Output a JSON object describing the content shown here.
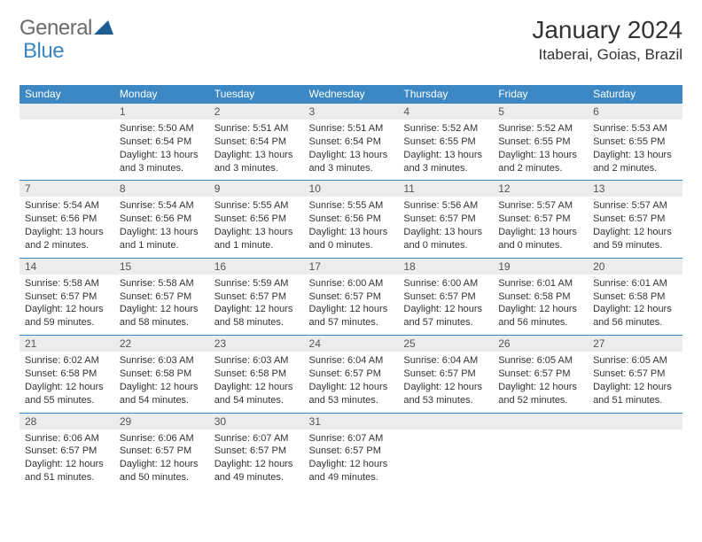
{
  "logo": {
    "part1": "General",
    "part2": "Blue"
  },
  "title": "January 2024",
  "location": "Itaberai, Goias, Brazil",
  "colors": {
    "header_bg": "#3b88c4",
    "header_text": "#ffffff",
    "daynum_bg": "#ececec",
    "rule": "#3b88c4",
    "logo_gray": "#6b6b6b",
    "logo_blue": "#3b88c4"
  },
  "weekdays": [
    "Sunday",
    "Monday",
    "Tuesday",
    "Wednesday",
    "Thursday",
    "Friday",
    "Saturday"
  ],
  "weeks": [
    [
      {
        "num": "",
        "sunrise": "",
        "sunset": "",
        "daylight": ""
      },
      {
        "num": "1",
        "sunrise": "5:50 AM",
        "sunset": "6:54 PM",
        "daylight": "13 hours and 3 minutes."
      },
      {
        "num": "2",
        "sunrise": "5:51 AM",
        "sunset": "6:54 PM",
        "daylight": "13 hours and 3 minutes."
      },
      {
        "num": "3",
        "sunrise": "5:51 AM",
        "sunset": "6:54 PM",
        "daylight": "13 hours and 3 minutes."
      },
      {
        "num": "4",
        "sunrise": "5:52 AM",
        "sunset": "6:55 PM",
        "daylight": "13 hours and 3 minutes."
      },
      {
        "num": "5",
        "sunrise": "5:52 AM",
        "sunset": "6:55 PM",
        "daylight": "13 hours and 2 minutes."
      },
      {
        "num": "6",
        "sunrise": "5:53 AM",
        "sunset": "6:55 PM",
        "daylight": "13 hours and 2 minutes."
      }
    ],
    [
      {
        "num": "7",
        "sunrise": "5:54 AM",
        "sunset": "6:56 PM",
        "daylight": "13 hours and 2 minutes."
      },
      {
        "num": "8",
        "sunrise": "5:54 AM",
        "sunset": "6:56 PM",
        "daylight": "13 hours and 1 minute."
      },
      {
        "num": "9",
        "sunrise": "5:55 AM",
        "sunset": "6:56 PM",
        "daylight": "13 hours and 1 minute."
      },
      {
        "num": "10",
        "sunrise": "5:55 AM",
        "sunset": "6:56 PM",
        "daylight": "13 hours and 0 minutes."
      },
      {
        "num": "11",
        "sunrise": "5:56 AM",
        "sunset": "6:57 PM",
        "daylight": "13 hours and 0 minutes."
      },
      {
        "num": "12",
        "sunrise": "5:57 AM",
        "sunset": "6:57 PM",
        "daylight": "13 hours and 0 minutes."
      },
      {
        "num": "13",
        "sunrise": "5:57 AM",
        "sunset": "6:57 PM",
        "daylight": "12 hours and 59 minutes."
      }
    ],
    [
      {
        "num": "14",
        "sunrise": "5:58 AM",
        "sunset": "6:57 PM",
        "daylight": "12 hours and 59 minutes."
      },
      {
        "num": "15",
        "sunrise": "5:58 AM",
        "sunset": "6:57 PM",
        "daylight": "12 hours and 58 minutes."
      },
      {
        "num": "16",
        "sunrise": "5:59 AM",
        "sunset": "6:57 PM",
        "daylight": "12 hours and 58 minutes."
      },
      {
        "num": "17",
        "sunrise": "6:00 AM",
        "sunset": "6:57 PM",
        "daylight": "12 hours and 57 minutes."
      },
      {
        "num": "18",
        "sunrise": "6:00 AM",
        "sunset": "6:57 PM",
        "daylight": "12 hours and 57 minutes."
      },
      {
        "num": "19",
        "sunrise": "6:01 AM",
        "sunset": "6:58 PM",
        "daylight": "12 hours and 56 minutes."
      },
      {
        "num": "20",
        "sunrise": "6:01 AM",
        "sunset": "6:58 PM",
        "daylight": "12 hours and 56 minutes."
      }
    ],
    [
      {
        "num": "21",
        "sunrise": "6:02 AM",
        "sunset": "6:58 PM",
        "daylight": "12 hours and 55 minutes."
      },
      {
        "num": "22",
        "sunrise": "6:03 AM",
        "sunset": "6:58 PM",
        "daylight": "12 hours and 54 minutes."
      },
      {
        "num": "23",
        "sunrise": "6:03 AM",
        "sunset": "6:58 PM",
        "daylight": "12 hours and 54 minutes."
      },
      {
        "num": "24",
        "sunrise": "6:04 AM",
        "sunset": "6:57 PM",
        "daylight": "12 hours and 53 minutes."
      },
      {
        "num": "25",
        "sunrise": "6:04 AM",
        "sunset": "6:57 PM",
        "daylight": "12 hours and 53 minutes."
      },
      {
        "num": "26",
        "sunrise": "6:05 AM",
        "sunset": "6:57 PM",
        "daylight": "12 hours and 52 minutes."
      },
      {
        "num": "27",
        "sunrise": "6:05 AM",
        "sunset": "6:57 PM",
        "daylight": "12 hours and 51 minutes."
      }
    ],
    [
      {
        "num": "28",
        "sunrise": "6:06 AM",
        "sunset": "6:57 PM",
        "daylight": "12 hours and 51 minutes."
      },
      {
        "num": "29",
        "sunrise": "6:06 AM",
        "sunset": "6:57 PM",
        "daylight": "12 hours and 50 minutes."
      },
      {
        "num": "30",
        "sunrise": "6:07 AM",
        "sunset": "6:57 PM",
        "daylight": "12 hours and 49 minutes."
      },
      {
        "num": "31",
        "sunrise": "6:07 AM",
        "sunset": "6:57 PM",
        "daylight": "12 hours and 49 minutes."
      },
      {
        "num": "",
        "sunrise": "",
        "sunset": "",
        "daylight": ""
      },
      {
        "num": "",
        "sunrise": "",
        "sunset": "",
        "daylight": ""
      },
      {
        "num": "",
        "sunrise": "",
        "sunset": "",
        "daylight": ""
      }
    ]
  ],
  "labels": {
    "sunrise": "Sunrise:",
    "sunset": "Sunset:",
    "daylight": "Daylight:"
  }
}
